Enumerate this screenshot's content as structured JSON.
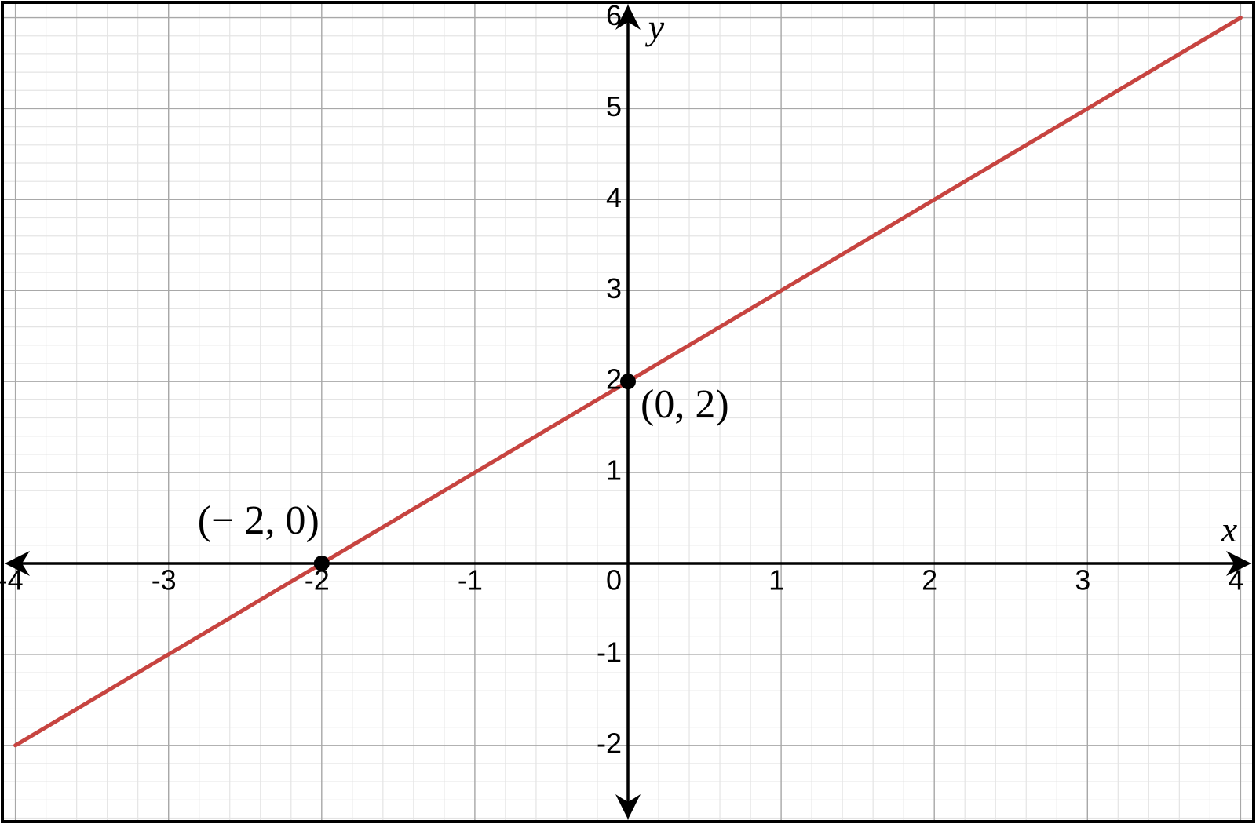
{
  "chart_data": {
    "type": "line",
    "x": [
      -4,
      4
    ],
    "values": [
      -2,
      6
    ],
    "color": "#c74440",
    "xlim": [
      -4.08,
      4.08
    ],
    "ylim": [
      -2.83,
      6.16
    ],
    "xticks": [
      -4,
      -3,
      -2,
      -1,
      0,
      1,
      2,
      3,
      4
    ],
    "yticks": [
      -2,
      -1,
      1,
      2,
      3,
      4,
      5,
      6
    ],
    "xlabel": "x",
    "ylabel": "y",
    "grid": true,
    "minor_grid": true,
    "points": [
      {
        "x": -2,
        "y": 0,
        "label": "(− 2, 0)"
      },
      {
        "x": 0,
        "y": 2,
        "label": "(0, 2)"
      }
    ]
  }
}
